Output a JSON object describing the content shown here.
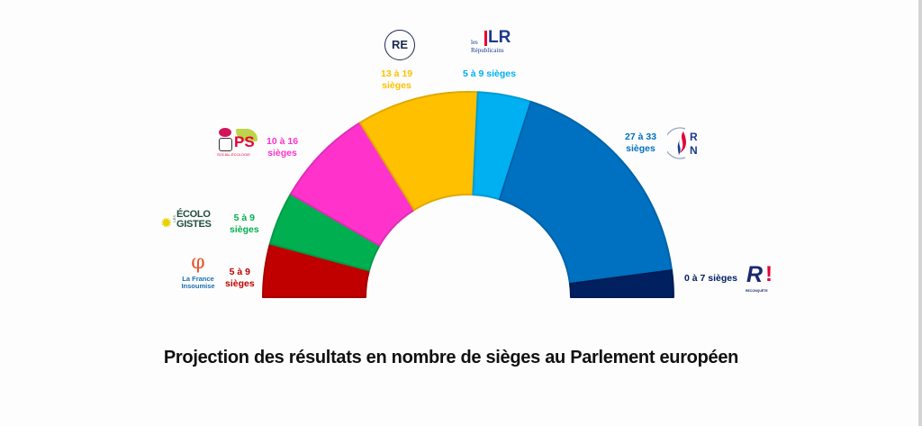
{
  "chart_data": {
    "type": "pie",
    "subtype": "half-donut",
    "title": "Projection des résultats en nombre de sièges au Parlement européen",
    "parties": [
      {
        "name": "La France Insoumise",
        "seats_min": 5,
        "seats_max": 9,
        "label": "5 à 9 sièges",
        "color": "#c00000"
      },
      {
        "name": "Les Écologistes",
        "seats_min": 5,
        "seats_max": 9,
        "label": "5 à 9 sièges",
        "color": "#00b050"
      },
      {
        "name": "PS Social-Écologie",
        "seats_min": 10,
        "seats_max": 16,
        "label": "10 à 16 sièges",
        "color": "#ff33cc"
      },
      {
        "name": "Renaissance",
        "seats_min": 13,
        "seats_max": 19,
        "label": "13 à 19 sièges",
        "color": "#ffc000"
      },
      {
        "name": "Les Républicains",
        "seats_min": 5,
        "seats_max": 9,
        "label": "5 à 9 sièges",
        "color": "#00b0f0"
      },
      {
        "name": "Rassemblement National",
        "seats_min": 27,
        "seats_max": 33,
        "label": "27 à 33 sièges",
        "color": "#0070c0"
      },
      {
        "name": "Reconquête",
        "seats_min": 0,
        "seats_max": 7,
        "label": "0 à 7 sièges",
        "color": "#002060"
      }
    ]
  },
  "labels": {
    "lfi": [
      "5 à 9",
      "sièges"
    ],
    "eco": [
      "5 à 9",
      "sièges"
    ],
    "ps": [
      "10 à 16",
      "sièges"
    ],
    "re": [
      "13 à 19",
      "sièges"
    ],
    "lr": "5 à 9 sièges",
    "rn": [
      "27 à 33",
      "sièges"
    ],
    "rec": "0 à 7 sièges"
  },
  "logos": {
    "lfi": {
      "symbol": "φ",
      "line1": "La France",
      "line2": "Insoumise"
    },
    "eco": {
      "line1": "ÉCOLO",
      "line2": "GISTES",
      "small": "LES"
    },
    "ps": {
      "text": "PS",
      "sub": "SOCIAL-ÉCOLOGIE"
    },
    "re": {
      "text": "RE"
    },
    "lr": {
      "mark": "LR",
      "line1": "les",
      "line2": "Républicains"
    },
    "rn": {
      "line1": "R",
      "line2": "N"
    },
    "rec": {
      "mark": "R",
      "bang": "!",
      "sub": "RECONQUÊTE"
    }
  }
}
